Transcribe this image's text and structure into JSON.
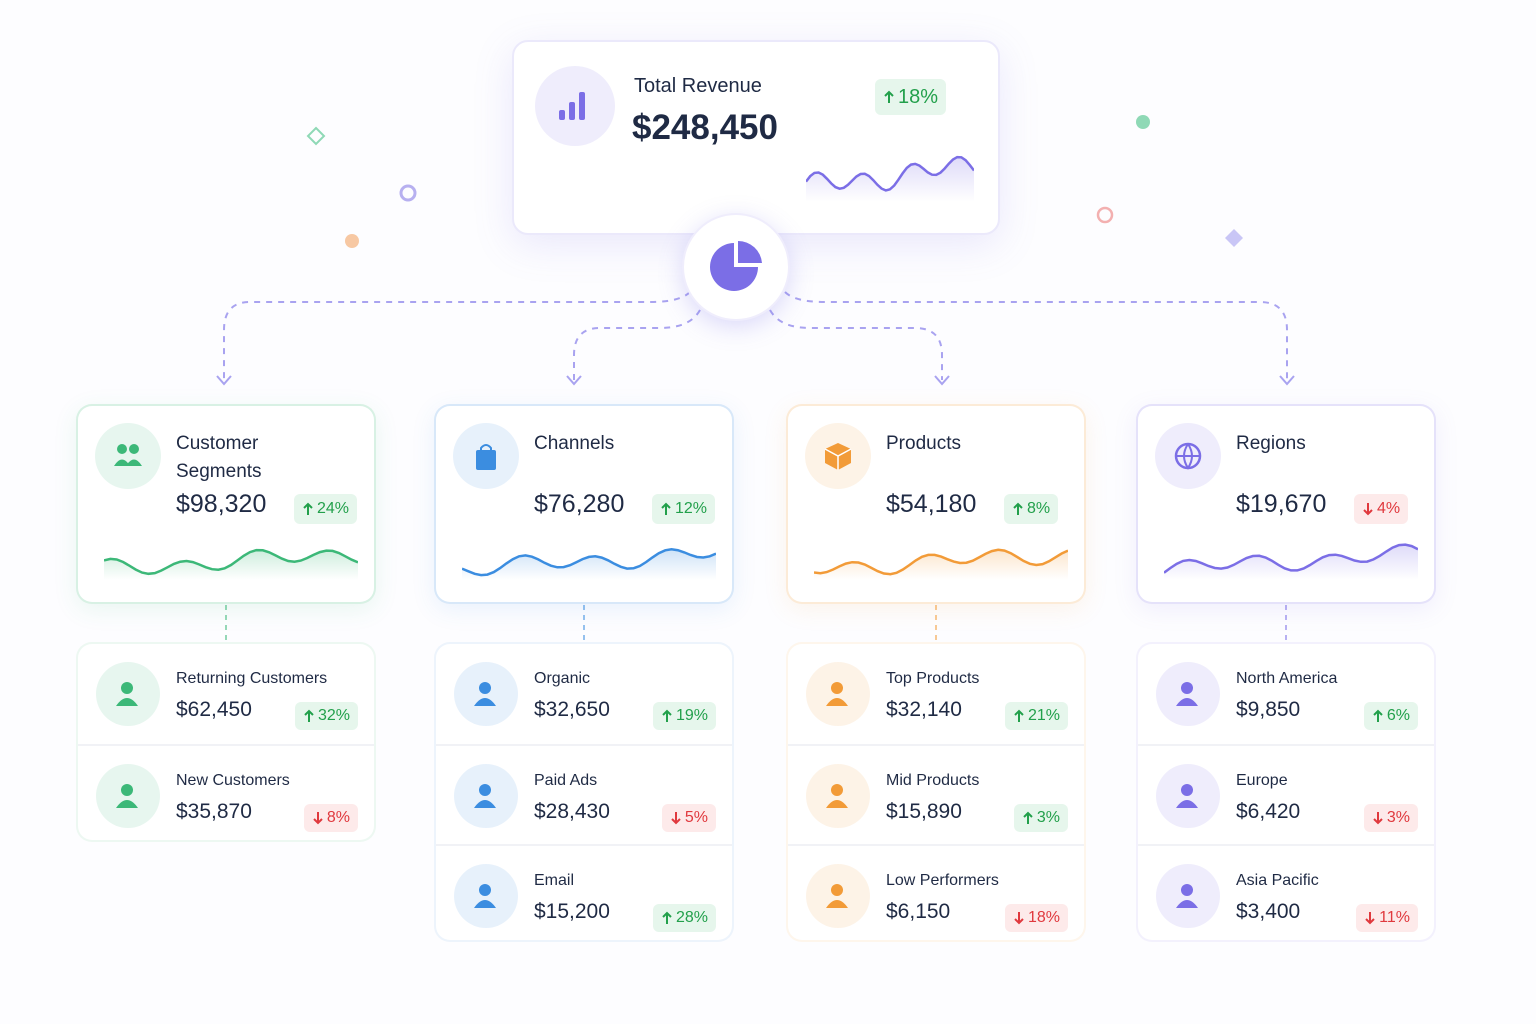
{
  "total": {
    "title": "Total Revenue",
    "value": "$248,450",
    "change": "18%",
    "trend": "up"
  },
  "groups": [
    {
      "title": "Customer Segments",
      "value": "$98,320",
      "change": "24%",
      "trend": "up",
      "color": "#3cb878",
      "items": [
        {
          "label": "Returning Customers",
          "value": "$62,450",
          "change": "32%",
          "trend": "up"
        },
        {
          "label": "New Customers",
          "value": "$35,870",
          "change": "8%",
          "trend": "down"
        }
      ]
    },
    {
      "title": "Channels",
      "value": "$76,280",
      "change": "12%",
      "trend": "up",
      "color": "#3b8de0",
      "items": [
        {
          "label": "Organic",
          "value": "$32,650",
          "change": "19%",
          "trend": "up"
        },
        {
          "label": "Paid Ads",
          "value": "$28,430",
          "change": "5%",
          "trend": "down"
        },
        {
          "label": "Email",
          "value": "$15,200",
          "change": "28%",
          "trend": "up"
        }
      ]
    },
    {
      "title": "Products",
      "value": "$54,180",
      "change": "8%",
      "trend": "up",
      "color": "#f29b38",
      "items": [
        {
          "label": "Top Products",
          "value": "$32,140",
          "change": "21%",
          "trend": "up"
        },
        {
          "label": "Mid Products",
          "value": "$15,890",
          "change": "3%",
          "trend": "up"
        },
        {
          "label": "Low Performers",
          "value": "$6,150",
          "change": "18%",
          "trend": "down"
        }
      ]
    },
    {
      "title": "Regions",
      "value": "$19,670",
      "change": "4%",
      "trend": "down",
      "color": "#7b6ee6",
      "items": [
        {
          "label": "North America",
          "value": "$9,850",
          "change": "6%",
          "trend": "up"
        },
        {
          "label": "Europe",
          "value": "$6,420",
          "change": "3%",
          "trend": "down"
        },
        {
          "label": "Asia Pacific",
          "value": "$3,400",
          "change": "11%",
          "trend": "down"
        }
      ]
    }
  ]
}
